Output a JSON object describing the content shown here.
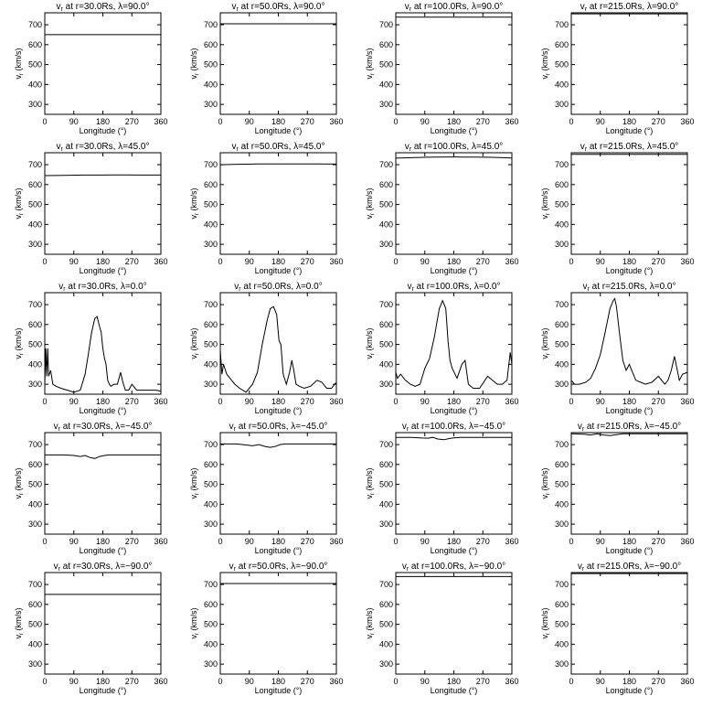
{
  "figure": {
    "xlabel": "Longitude (°)",
    "ylabel": "vr (km/s)",
    "xticks": [
      0,
      90,
      180,
      270,
      360
    ],
    "yticks": [
      300,
      400,
      500,
      600,
      700
    ],
    "xlim": [
      0,
      360
    ],
    "ylim": [
      250,
      760
    ]
  },
  "chart_data": [
    {
      "type": "line",
      "title": "vr at r=30.0Rs, λ=90.0°",
      "r_label": "30.0Rs",
      "lat_label": "90.0°",
      "x": [
        0,
        360
      ],
      "y": [
        650,
        650
      ]
    },
    {
      "type": "line",
      "title": "vr at r=50.0Rs, λ=90.0°",
      "r_label": "50.0Rs",
      "lat_label": "90.0°",
      "x": [
        0,
        360
      ],
      "y": [
        705,
        705
      ]
    },
    {
      "type": "line",
      "title": "vr at r=100.0Rs, λ=90.0°",
      "r_label": "100.0Rs",
      "lat_label": "90.0°",
      "x": [
        0,
        360
      ],
      "y": [
        738,
        738
      ]
    },
    {
      "type": "line",
      "title": "vr at r=215.0Rs, λ=90.0°",
      "r_label": "215.0Rs",
      "lat_label": "90.0°",
      "x": [
        0,
        360
      ],
      "y": [
        755,
        755
      ]
    },
    {
      "type": "line",
      "title": "vr at r=30.0Rs, λ=45.0°",
      "r_label": "30.0Rs",
      "lat_label": "45.0°",
      "x": [
        0,
        60,
        120,
        180,
        240,
        300,
        360
      ],
      "y": [
        645,
        646,
        648,
        648,
        649,
        648,
        648
      ]
    },
    {
      "type": "line",
      "title": "vr at r=50.0Rs, λ=45.0°",
      "r_label": "50.0Rs",
      "lat_label": "45.0°",
      "x": [
        0,
        60,
        120,
        180,
        240,
        300,
        360
      ],
      "y": [
        700,
        702,
        704,
        704,
        704,
        704,
        703
      ]
    },
    {
      "type": "line",
      "title": "vr at r=100.0Rs, λ=45.0°",
      "r_label": "100.0Rs",
      "lat_label": "45.0°",
      "x": [
        0,
        60,
        120,
        180,
        240,
        300,
        360
      ],
      "y": [
        733,
        736,
        738,
        739,
        738,
        737,
        734
      ]
    },
    {
      "type": "line",
      "title": "vr at r=215.0Rs, λ=45.0°",
      "r_label": "215.0Rs",
      "lat_label": "45.0°",
      "x": [
        0,
        360
      ],
      "y": [
        752,
        752
      ]
    },
    {
      "type": "line",
      "title": "vr at r=30.0Rs, λ=0.0°",
      "r_label": "30.0Rs",
      "lat_label": "0.0°",
      "x": [
        0,
        3,
        6,
        9,
        12,
        18,
        25,
        35,
        50,
        70,
        90,
        110,
        125,
        135,
        145,
        155,
        162,
        168,
        175,
        180,
        185,
        190,
        195,
        200,
        205,
        215,
        225,
        235,
        242,
        250,
        260,
        270,
        285,
        300,
        315,
        330,
        345,
        360
      ],
      "y": [
        300,
        480,
        340,
        480,
        340,
        370,
        300,
        290,
        280,
        270,
        260,
        270,
        350,
        450,
        560,
        630,
        640,
        600,
        560,
        480,
        430,
        400,
        320,
        300,
        290,
        300,
        300,
        360,
        310,
        270,
        270,
        300,
        270,
        270,
        270,
        270,
        270,
        265
      ]
    },
    {
      "type": "line",
      "title": "vr at r=50.0Rs, λ=0.0°",
      "r_label": "50.0Rs",
      "lat_label": "0.0°",
      "x": [
        0,
        5,
        10,
        20,
        30,
        45,
        60,
        80,
        100,
        115,
        130,
        145,
        155,
        165,
        175,
        182,
        188,
        195,
        205,
        215,
        222,
        228,
        235,
        245,
        260,
        280,
        300,
        315,
        330,
        345,
        355,
        360
      ],
      "y": [
        470,
        350,
        400,
        350,
        330,
        300,
        280,
        260,
        300,
        360,
        500,
        620,
        680,
        690,
        650,
        520,
        500,
        350,
        300,
        360,
        420,
        370,
        300,
        290,
        280,
        290,
        320,
        310,
        280,
        280,
        300,
        310
      ]
    },
    {
      "type": "line",
      "title": "vr at r=100.0Rs, λ=0.0°",
      "r_label": "100.0Rs",
      "lat_label": "0.0°",
      "x": [
        0,
        5,
        15,
        30,
        45,
        60,
        75,
        90,
        105,
        120,
        135,
        145,
        155,
        162,
        168,
        175,
        190,
        205,
        215,
        225,
        240,
        260,
        285,
        300,
        315,
        330,
        345,
        355,
        360
      ],
      "y": [
        360,
        330,
        350,
        320,
        300,
        290,
        300,
        380,
        430,
        540,
        680,
        720,
        680,
        520,
        420,
        380,
        330,
        400,
        420,
        300,
        280,
        280,
        340,
        320,
        300,
        300,
        320,
        460,
        400
      ]
    },
    {
      "type": "line",
      "title": "vr at r=215.0Rs, λ=0.0°",
      "r_label": "215.0Rs",
      "lat_label": "0.0°",
      "x": [
        0,
        10,
        25,
        45,
        60,
        75,
        90,
        105,
        120,
        130,
        135,
        140,
        150,
        160,
        170,
        180,
        190,
        200,
        215,
        230,
        250,
        270,
        290,
        300,
        310,
        320,
        335,
        345,
        360
      ],
      "y": [
        320,
        300,
        300,
        310,
        330,
        380,
        450,
        560,
        680,
        720,
        730,
        690,
        550,
        420,
        370,
        400,
        360,
        320,
        310,
        300,
        310,
        340,
        300,
        320,
        370,
        440,
        320,
        350,
        360
      ]
    },
    {
      "type": "line",
      "title": "vr at r=30.0Rs, λ=-45.0°",
      "r_label": "30.0Rs",
      "lat_label": "-45.0°",
      "x": [
        0,
        60,
        90,
        110,
        125,
        140,
        155,
        170,
        185,
        200,
        240,
        300,
        360
      ],
      "y": [
        648,
        648,
        645,
        640,
        645,
        635,
        630,
        640,
        645,
        648,
        648,
        648,
        648
      ]
    },
    {
      "type": "line",
      "title": "vr at r=50.0Rs, λ=-45.0°",
      "r_label": "50.0Rs",
      "lat_label": "-45.0°",
      "x": [
        0,
        50,
        80,
        100,
        120,
        140,
        155,
        170,
        185,
        200,
        240,
        300,
        360
      ],
      "y": [
        703,
        703,
        698,
        694,
        700,
        690,
        686,
        690,
        700,
        703,
        703,
        703,
        703
      ]
    },
    {
      "type": "line",
      "title": "vr at r=100.0Rs, λ=-45.0°",
      "r_label": "100.0Rs",
      "lat_label": "-45.0°",
      "x": [
        0,
        50,
        80,
        100,
        115,
        130,
        150,
        165,
        180,
        200,
        240,
        300,
        360
      ],
      "y": [
        736,
        736,
        733,
        732,
        736,
        728,
        724,
        730,
        734,
        736,
        736,
        736,
        736
      ]
    },
    {
      "type": "line",
      "title": "vr at r=215.0Rs, λ=-45.0°",
      "r_label": "215.0Rs",
      "lat_label": "-45.0°",
      "x": [
        0,
        40,
        60,
        80,
        100,
        120,
        140,
        160,
        180,
        220,
        300,
        360
      ],
      "y": [
        754,
        752,
        748,
        754,
        748,
        745,
        750,
        754,
        754,
        754,
        754,
        754
      ]
    },
    {
      "type": "line",
      "title": "vr at r=30.0Rs, λ=-90.0°",
      "r_label": "30.0Rs",
      "lat_label": "-90.0°",
      "x": [
        0,
        360
      ],
      "y": [
        650,
        650
      ]
    },
    {
      "type": "line",
      "title": "vr at r=50.0Rs, λ=-90.0°",
      "r_label": "50.0Rs",
      "lat_label": "-90.0°",
      "x": [
        0,
        360
      ],
      "y": [
        705,
        705
      ]
    },
    {
      "type": "line",
      "title": "vr at r=100.0Rs, λ=-90.0°",
      "r_label": "100.0Rs",
      "lat_label": "-90.0°",
      "x": [
        0,
        360
      ],
      "y": [
        740,
        740
      ]
    },
    {
      "type": "line",
      "title": "vr at r=215.0Rs, λ=-90.0°",
      "r_label": "215.0Rs",
      "lat_label": "-90.0°",
      "x": [
        0,
        360
      ],
      "y": [
        755,
        755
      ]
    }
  ]
}
